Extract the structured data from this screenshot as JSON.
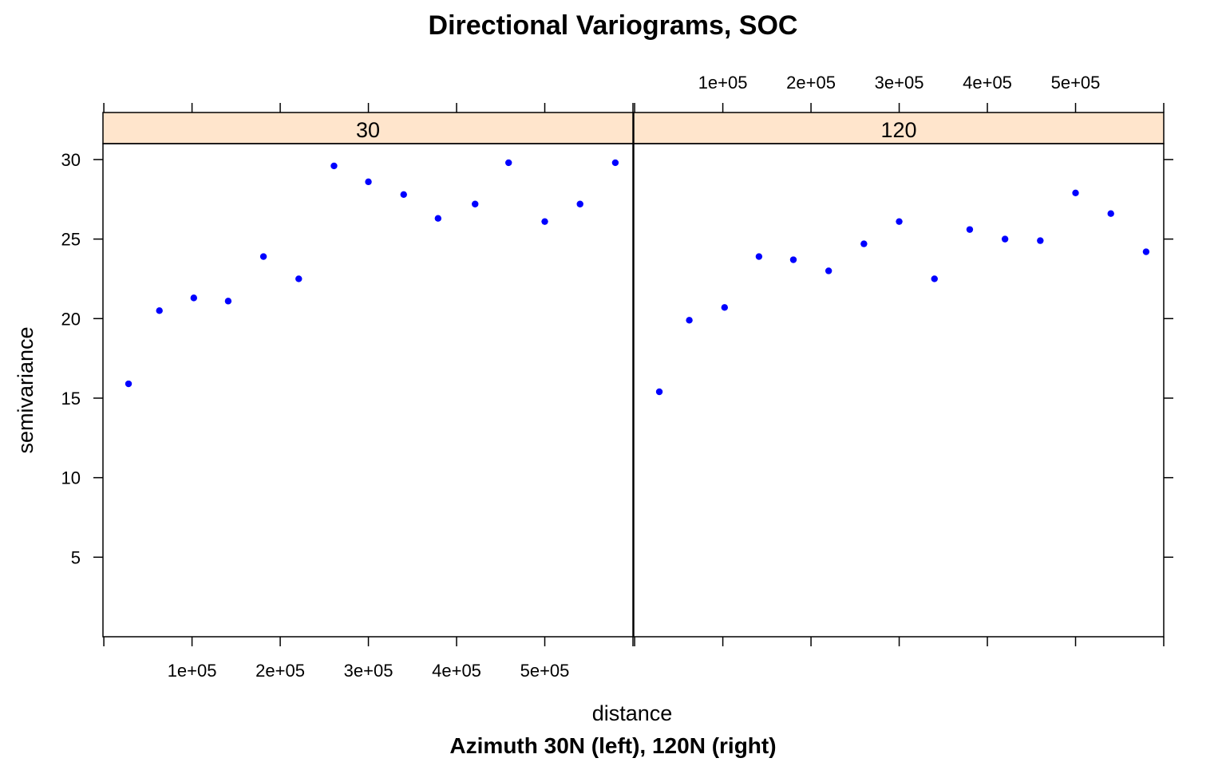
{
  "colors": {
    "point": "#0000ff",
    "strip": "#ffe5cc",
    "frame": "#000000"
  },
  "chart_data": {
    "type": "scatter",
    "title": "Directional Variograms, SOC",
    "xlabel": "distance",
    "sub_caption": "Azimuth 30N (left), 120N (right)",
    "ylabel": "semivariance",
    "xlim": [
      -1000,
      600000
    ],
    "ylim": [
      0,
      31
    ],
    "x_ticks": [
      100000,
      200000,
      300000,
      400000,
      500000
    ],
    "x_tick_labels": [
      "1e+05",
      "2e+05",
      "3e+05",
      "4e+05",
      "5e+05"
    ],
    "y_ticks": [
      5,
      10,
      15,
      20,
      25,
      30
    ],
    "y_tick_labels": [
      "5",
      "10",
      "15",
      "20",
      "25",
      "30"
    ],
    "grid": false,
    "panels": [
      {
        "strip": "30",
        "points": [
          {
            "x": 28000,
            "y": 15.9
          },
          {
            "x": 63000,
            "y": 20.5
          },
          {
            "x": 102000,
            "y": 21.3
          },
          {
            "x": 141000,
            "y": 21.1
          },
          {
            "x": 181000,
            "y": 23.9
          },
          {
            "x": 221000,
            "y": 22.5
          },
          {
            "x": 261000,
            "y": 29.6
          },
          {
            "x": 300000,
            "y": 28.6
          },
          {
            "x": 340000,
            "y": 27.8
          },
          {
            "x": 379000,
            "y": 26.3
          },
          {
            "x": 421000,
            "y": 27.2
          },
          {
            "x": 459000,
            "y": 29.8
          },
          {
            "x": 500000,
            "y": 26.1
          },
          {
            "x": 540000,
            "y": 27.2
          },
          {
            "x": 580000,
            "y": 29.8
          }
        ]
      },
      {
        "strip": "120",
        "points": [
          {
            "x": 28000,
            "y": 15.4
          },
          {
            "x": 62000,
            "y": 19.9
          },
          {
            "x": 102000,
            "y": 20.7
          },
          {
            "x": 141000,
            "y": 23.9
          },
          {
            "x": 180000,
            "y": 23.7
          },
          {
            "x": 220000,
            "y": 23.0
          },
          {
            "x": 260000,
            "y": 24.7
          },
          {
            "x": 300000,
            "y": 26.1
          },
          {
            "x": 340000,
            "y": 22.5
          },
          {
            "x": 380000,
            "y": 25.6
          },
          {
            "x": 420000,
            "y": 25.0
          },
          {
            "x": 460000,
            "y": 24.9
          },
          {
            "x": 500000,
            "y": 27.9
          },
          {
            "x": 540000,
            "y": 26.6
          },
          {
            "x": 580000,
            "y": 24.2
          }
        ]
      }
    ]
  }
}
